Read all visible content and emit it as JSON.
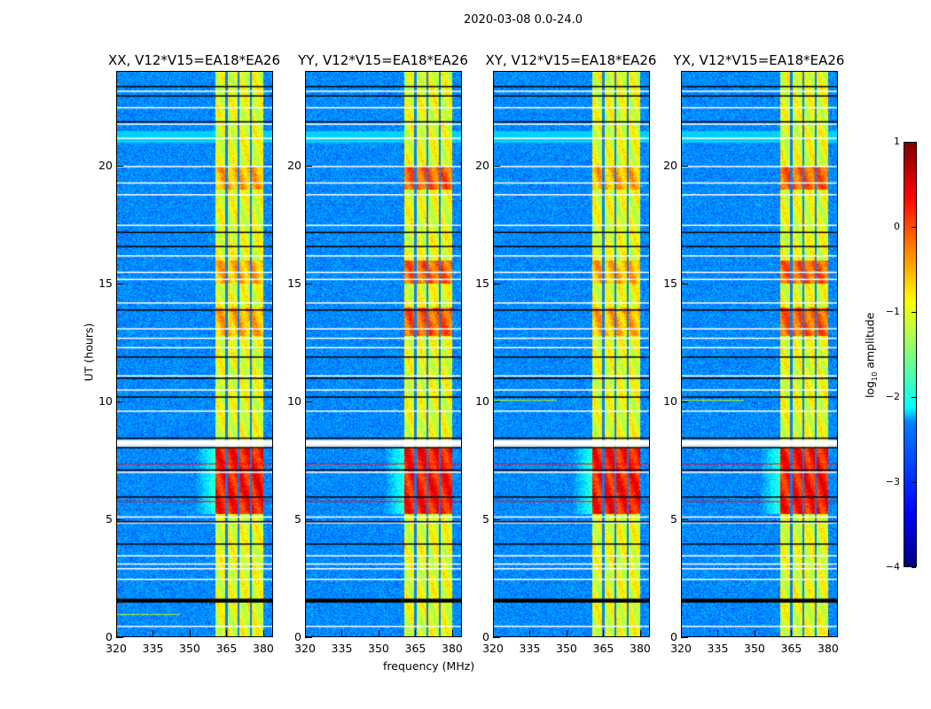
{
  "chart_data": {
    "type": "heatmap",
    "title": "2020-03-08 0.0-24.0",
    "xlabel": "frequency (MHz)",
    "ylabel": "UT (hours)",
    "xlim": [
      320,
      384
    ],
    "ylim": [
      0,
      24
    ],
    "xticks": [
      "320",
      "335",
      "350",
      "365",
      "380"
    ],
    "xtick_values": [
      320,
      335,
      350,
      365,
      380
    ],
    "yticks": [
      "0",
      "5",
      "10",
      "15",
      "20"
    ],
    "ytick_values": [
      0,
      5,
      10,
      15,
      20
    ],
    "panels": [
      {
        "title": "XX, V12*V15=EA18*EA26"
      },
      {
        "title": "YY, V12*V15=EA18*EA26"
      },
      {
        "title": "XY, V12*V15=EA18*EA26"
      },
      {
        "title": "YX, V12*V15=EA18*EA26"
      }
    ],
    "bright_band_mhz": [
      360.5,
      380
    ],
    "band_gaps_mhz": [
      365,
      370,
      375
    ],
    "flagged_white_hours": [
      0.45,
      2.45,
      2.9,
      3.1,
      3.45,
      4.85,
      5.1,
      7.0,
      8.1,
      8.35,
      9.6,
      10.5,
      11.1,
      12.3,
      12.7,
      13.1,
      14.2,
      15.2,
      15.5,
      16.2,
      17.5,
      18.8,
      19.3,
      20.0,
      21.2,
      21.8,
      22.5,
      23.2
    ],
    "flagged_black_hours": [
      1.5,
      1.6,
      3.95,
      4.9,
      5.95,
      7.1,
      8.05,
      8.45,
      10.2,
      11.0,
      11.9,
      13.9,
      16.6,
      17.2,
      21.9,
      23.0,
      23.4
    ],
    "colorbar": {
      "label": "log10 amplitude",
      "label_main": "log",
      "label_sub": "10",
      "label_rest": " amplitude",
      "ticks": [
        "1",
        "0",
        "−1",
        "−2",
        "−3",
        "−4"
      ],
      "tick_values": [
        1,
        0,
        -1,
        -2,
        -3,
        -4
      ],
      "range": [
        -4,
        1
      ],
      "colormap": "jet"
    }
  }
}
